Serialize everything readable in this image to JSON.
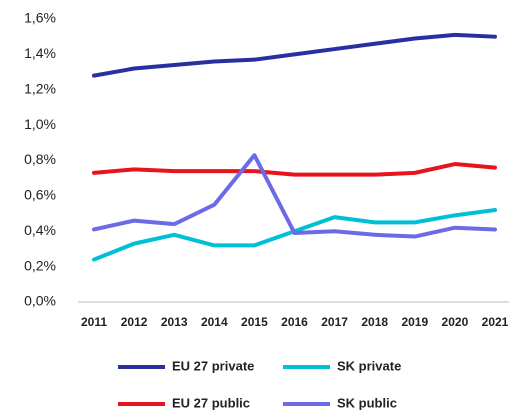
{
  "chart_data": {
    "type": "line",
    "categories": [
      "2011",
      "2012",
      "2013",
      "2014",
      "2015",
      "2016",
      "2017",
      "2018",
      "2019",
      "2020",
      "2021"
    ],
    "series": [
      {
        "name": "EU 27 private",
        "color": "#2a2fa0",
        "values": [
          1.28,
          1.32,
          1.34,
          1.36,
          1.37,
          1.4,
          1.43,
          1.46,
          1.49,
          1.51,
          1.5
        ]
      },
      {
        "name": "SK private",
        "color": "#00c0d8",
        "values": [
          0.24,
          0.33,
          0.38,
          0.32,
          0.32,
          0.4,
          0.48,
          0.45,
          0.45,
          0.49,
          0.52
        ]
      },
      {
        "name": "EU 27 public",
        "color": "#e8141b",
        "values": [
          0.73,
          0.75,
          0.74,
          0.74,
          0.74,
          0.72,
          0.72,
          0.72,
          0.73,
          0.78,
          0.76
        ]
      },
      {
        "name": "SK public",
        "color": "#6b6be8",
        "values": [
          0.41,
          0.46,
          0.44,
          0.55,
          0.83,
          0.39,
          0.4,
          0.38,
          0.37,
          0.42,
          0.41
        ]
      }
    ],
    "ylim": [
      0,
      1.6
    ],
    "yticks": [
      {
        "value": 0,
        "label": "0,0%"
      },
      {
        "value": 0.2,
        "label": "0,2%"
      },
      {
        "value": 0.4,
        "label": "0,4%"
      },
      {
        "value": 0.6,
        "label": "0,6%"
      },
      {
        "value": 0.8,
        "label": "0,8%"
      },
      {
        "value": 1.0,
        "label": "1,0%"
      },
      {
        "value": 1.2,
        "label": "1,2%"
      },
      {
        "value": 1.4,
        "label": "1,4%"
      },
      {
        "value": 1.6,
        "label": "1,6%"
      }
    ],
    "grid": false
  }
}
